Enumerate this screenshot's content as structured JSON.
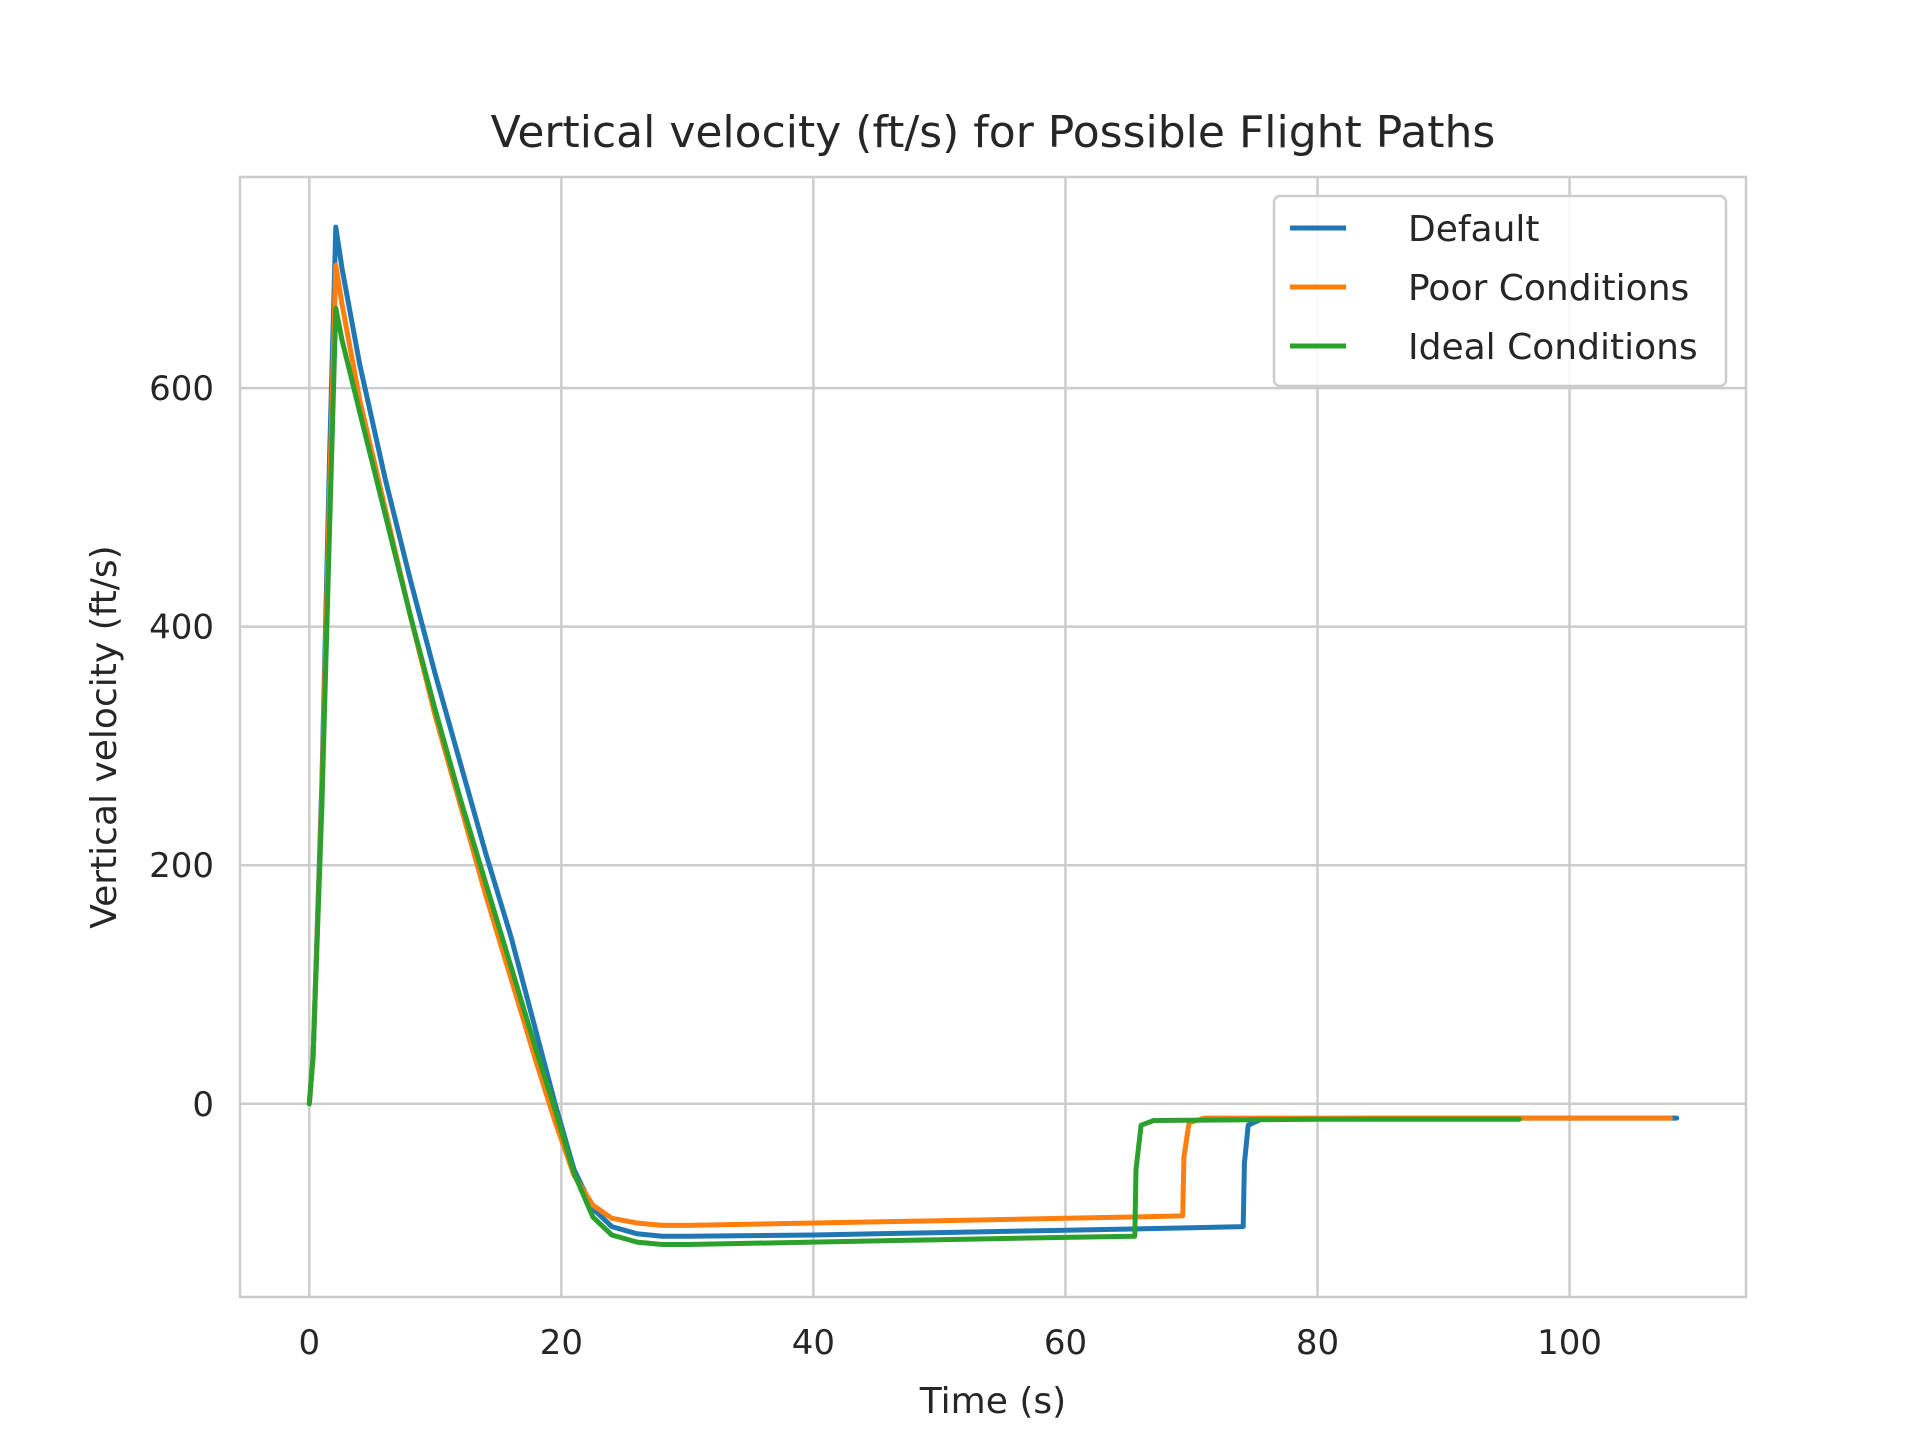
{
  "chart_data": {
    "type": "line",
    "title": "Vertical velocity (ft/s) for Possible Flight Paths",
    "xlabel": "Time (s)",
    "ylabel": "Vertical velocity (ft/s)",
    "xlim": [
      -5.5,
      114
    ],
    "ylim": [
      -162,
      777
    ],
    "xticks": [
      0,
      20,
      40,
      60,
      80,
      100
    ],
    "yticks": [
      0,
      200,
      400,
      600
    ],
    "xtick_labels": [
      "0",
      "20",
      "40",
      "60",
      "80",
      "100"
    ],
    "ytick_labels": [
      "0",
      "200",
      "400",
      "600"
    ],
    "grid": true,
    "legend_position": "top-right",
    "series": [
      {
        "name": "Default",
        "color": "#1f77b4",
        "points": [
          [
            0,
            0
          ],
          [
            0.3,
            40
          ],
          [
            1,
            270
          ],
          [
            1.6,
            540
          ],
          [
            2.1,
            735
          ],
          [
            2.6,
            700
          ],
          [
            4,
            620
          ],
          [
            6,
            525
          ],
          [
            8,
            440
          ],
          [
            10,
            360
          ],
          [
            12,
            285
          ],
          [
            14,
            210
          ],
          [
            16,
            140
          ],
          [
            18,
            60
          ],
          [
            19.5,
            0
          ],
          [
            21,
            -55
          ],
          [
            22.5,
            -88
          ],
          [
            24,
            -103
          ],
          [
            26,
            -109
          ],
          [
            28,
            -111
          ],
          [
            30,
            -111
          ],
          [
            40,
            -110
          ],
          [
            50,
            -108
          ],
          [
            60,
            -106
          ],
          [
            70,
            -104
          ],
          [
            74.1,
            -103
          ],
          [
            74.2,
            -50
          ],
          [
            74.5,
            -18
          ],
          [
            75.5,
            -13
          ],
          [
            85,
            -12
          ],
          [
            95,
            -12
          ],
          [
            105,
            -12
          ],
          [
            108.5,
            -12
          ]
        ]
      },
      {
        "name": "Poor Conditions",
        "color": "#ff7f0e",
        "points": [
          [
            0,
            0
          ],
          [
            0.3,
            40
          ],
          [
            1,
            260
          ],
          [
            1.6,
            510
          ],
          [
            2.1,
            703
          ],
          [
            2.6,
            670
          ],
          [
            4,
            590
          ],
          [
            6,
            500
          ],
          [
            8,
            410
          ],
          [
            10,
            325
          ],
          [
            12,
            250
          ],
          [
            14,
            175
          ],
          [
            16,
            105
          ],
          [
            18,
            35
          ],
          [
            19.5,
            -15
          ],
          [
            21,
            -60
          ],
          [
            22.5,
            -85
          ],
          [
            24,
            -96
          ],
          [
            26,
            -100
          ],
          [
            28,
            -102
          ],
          [
            30,
            -102
          ],
          [
            40,
            -100
          ],
          [
            50,
            -98
          ],
          [
            60,
            -96
          ],
          [
            69.3,
            -94
          ],
          [
            69.4,
            -45
          ],
          [
            69.8,
            -16
          ],
          [
            71,
            -12
          ],
          [
            85,
            -12
          ],
          [
            100,
            -12
          ],
          [
            108,
            -12
          ]
        ]
      },
      {
        "name": "Ideal Conditions",
        "color": "#2ca02c",
        "points": [
          [
            0,
            0
          ],
          [
            0.3,
            40
          ],
          [
            1,
            250
          ],
          [
            1.6,
            480
          ],
          [
            2.1,
            667
          ],
          [
            2.6,
            640
          ],
          [
            4,
            580
          ],
          [
            6,
            495
          ],
          [
            8,
            410
          ],
          [
            10,
            330
          ],
          [
            12,
            255
          ],
          [
            14,
            185
          ],
          [
            16,
            115
          ],
          [
            18,
            45
          ],
          [
            19.5,
            -5
          ],
          [
            21,
            -58
          ],
          [
            22.5,
            -95
          ],
          [
            24,
            -110
          ],
          [
            26,
            -116
          ],
          [
            28,
            -118
          ],
          [
            30,
            -118
          ],
          [
            40,
            -116
          ],
          [
            50,
            -114
          ],
          [
            60,
            -112
          ],
          [
            65.5,
            -111
          ],
          [
            65.6,
            -55
          ],
          [
            66,
            -18
          ],
          [
            67,
            -14
          ],
          [
            80,
            -13
          ],
          [
            95,
            -13
          ],
          [
            96,
            -13
          ]
        ]
      }
    ]
  }
}
